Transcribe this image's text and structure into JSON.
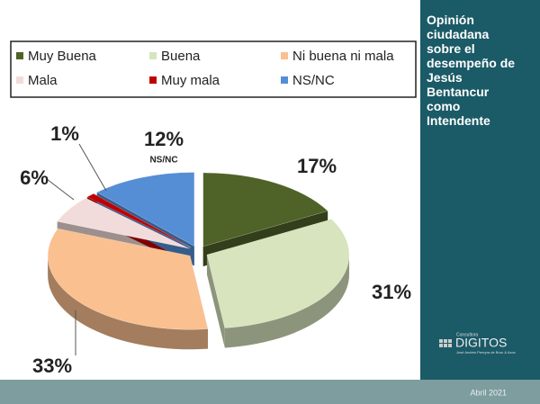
{
  "chart_data": {
    "type": "pie",
    "title": "Opinión ciudadana sobre el desempeño de Jesús Bentancur como Intendente",
    "categories": [
      "Muy Buena",
      "Buena",
      "Ni buena ni mala",
      "Mala",
      "Muy mala",
      "NS/NC"
    ],
    "values": [
      17,
      31,
      33,
      6,
      1,
      12
    ],
    "value_labels": [
      "17%",
      "31%",
      "33%",
      "6%",
      "1%",
      "12%"
    ],
    "colors": [
      "#4f6228",
      "#d7e4bd",
      "#fac090",
      "#f2dcdb",
      "#c00000",
      "#558ed5"
    ],
    "legend": "top"
  },
  "logo": {
    "small": "Consultora",
    "name": "DIGITOS",
    "tagline": "José Andrés Pereyra de Brun & Asoc"
  },
  "footer": {
    "date": "Abril 2021"
  }
}
